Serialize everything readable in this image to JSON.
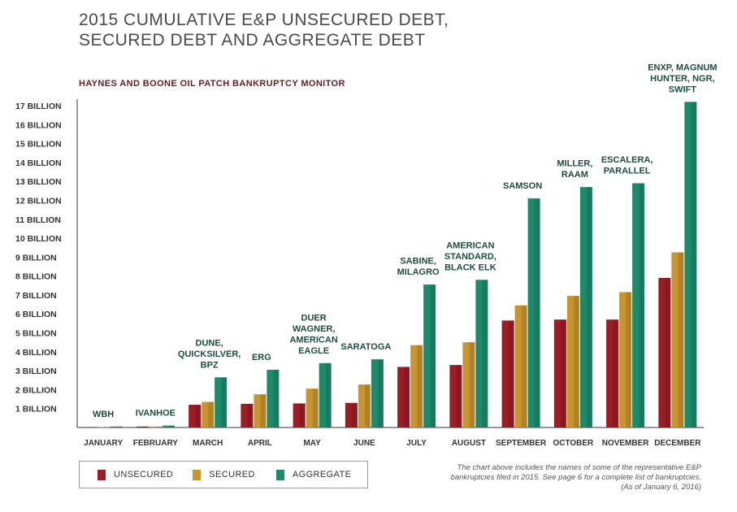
{
  "title_line1": "2015 CUMULATIVE E&P UNSECURED DEBT,",
  "title_line2": "SECURED DEBT AND AGGREGATE DEBT",
  "subtitle": "HAYNES AND BOONE OIL PATCH BANKRUPTCY MONITOR",
  "legend": {
    "unsecured": "UNSECURED",
    "secured": "SECURED",
    "aggregate": "AGGREGATE"
  },
  "note": {
    "line1": "The chart above includes the names of some of the representative E&P",
    "line2": "bankruptcies filed in 2015. See page 6 for a complete list of bankruptcies.",
    "line3": "(As of January 6, 2016)"
  },
  "colors": {
    "unsecured": "#9b1d25",
    "secured": "#c89430",
    "aggregate": "#1e8a6c",
    "label": "#1e4d3c"
  },
  "chart_data": {
    "type": "bar",
    "ylim": [
      0,
      17
    ],
    "yticks": [
      "1 BILLION",
      "2 BILLION",
      "3 BILLION",
      "4 BILLION",
      "5 BILLION",
      "6 BILLION",
      "7 BILLION",
      "8 BILLION",
      "9 BILLION",
      "10 BILLION",
      "11 BILLION",
      "12 BILLION",
      "13 BILLION",
      "14 BILLION",
      "15 BILLION",
      "16 BILLION",
      "17 BILLION"
    ],
    "categories": [
      "JANUARY",
      "FEBRUARY",
      "MARCH",
      "APRIL",
      "MAY",
      "JUNE",
      "JULY",
      "AUGUST",
      "SEPTEMBER",
      "OCTOBER",
      "NOVEMBER",
      "DECEMBER"
    ],
    "series": [
      {
        "name": "UNSECURED",
        "values": [
          0.02,
          0.05,
          1.2,
          1.25,
          1.27,
          1.3,
          3.2,
          3.3,
          5.65,
          5.7,
          5.7,
          7.9
        ]
      },
      {
        "name": "SECURED",
        "values": [
          0.03,
          0.05,
          1.35,
          1.75,
          2.05,
          2.27,
          4.35,
          4.5,
          6.45,
          6.95,
          7.15,
          9.25
        ]
      },
      {
        "name": "AGGREGATE",
        "values": [
          0.05,
          0.1,
          2.65,
          3.05,
          3.4,
          3.6,
          7.55,
          7.8,
          12.1,
          12.7,
          12.9,
          17.2
        ]
      }
    ],
    "annotations": [
      [
        "WBH"
      ],
      [
        "IVANHOE"
      ],
      [
        "DUNE,",
        "QUICKSILVER,",
        "BPZ"
      ],
      [
        "ERG"
      ],
      [
        "DUER",
        "WAGNER,",
        "AMERICAN",
        "EAGLE"
      ],
      [
        "SARATOGA"
      ],
      [
        "SABINE,",
        "MILAGRO"
      ],
      [
        "AMERICAN",
        "STANDARD,",
        "BLACK ELK"
      ],
      [
        "SAMSON"
      ],
      [
        "MILLER,",
        "RAAM"
      ],
      [
        "ESCALERA,",
        "PARALLEL"
      ],
      [
        "ENXP, MAGNUM",
        "HUNTER, NGR,",
        "SWIFT"
      ]
    ]
  }
}
